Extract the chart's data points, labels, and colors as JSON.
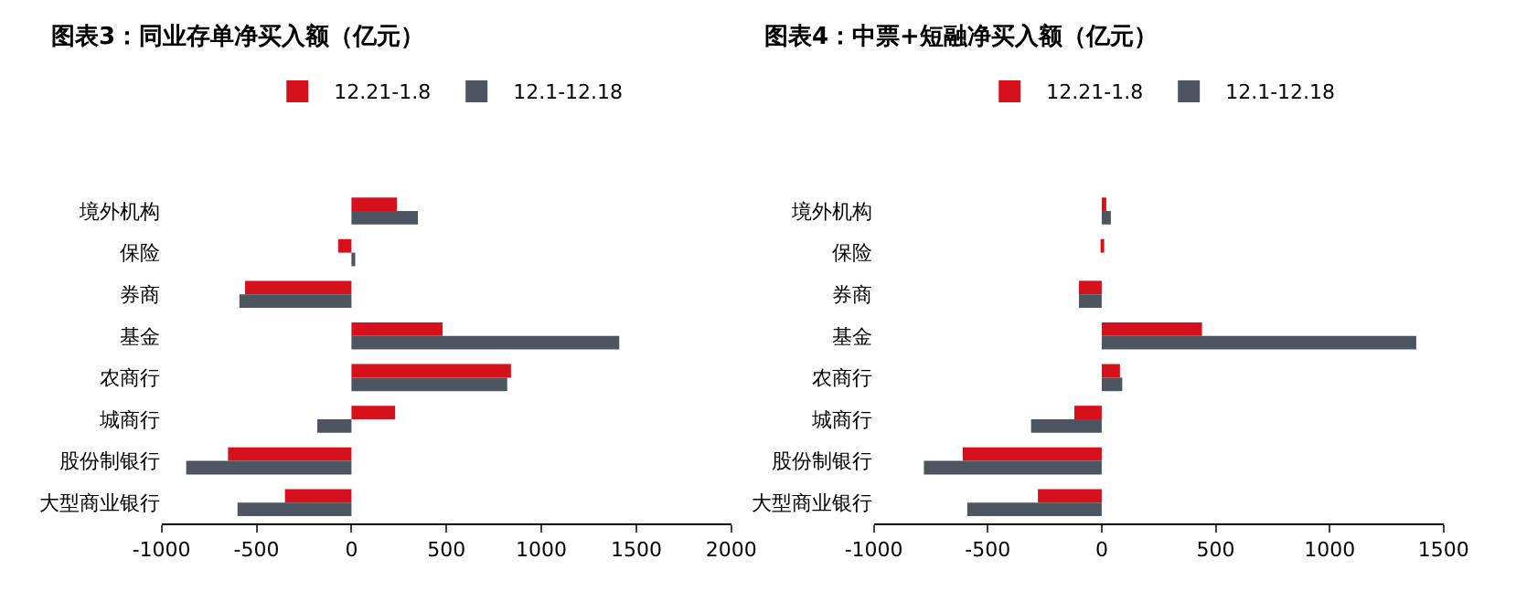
{
  "chart_data": [
    {
      "type": "bar",
      "orientation": "horizontal",
      "title": "图表3：同业存单净买入额（亿元）",
      "categories": [
        "境外机构",
        "保险",
        "券商",
        "基金",
        "农商行",
        "城商行",
        "股份制银行",
        "大型商业银行"
      ],
      "series": [
        {
          "name": "12.21-1.8",
          "color": "#d7111b",
          "values": [
            240,
            -70,
            -560,
            480,
            840,
            230,
            -650,
            -350
          ]
        },
        {
          "name": "12.1-12.18",
          "color": "#4d5560",
          "values": [
            350,
            20,
            -590,
            1410,
            820,
            -180,
            -870,
            -600
          ]
        }
      ],
      "xlim": [
        -1000,
        2000
      ],
      "xticks": [
        -1000,
        -500,
        0,
        500,
        1000,
        1500,
        2000
      ],
      "legend": "top"
    },
    {
      "type": "bar",
      "orientation": "horizontal",
      "title": "图表4：中票+短融净买入额（亿元）",
      "categories": [
        "境外机构",
        "保险",
        "券商",
        "基金",
        "农商行",
        "城商行",
        "股份制银行",
        "大型商业银行"
      ],
      "series": [
        {
          "name": "12.21-1.8",
          "color": "#d7111b",
          "values": [
            20,
            10,
            -100,
            440,
            80,
            -120,
            -610,
            -280
          ]
        },
        {
          "name": "12.1-12.18",
          "color": "#4d5560",
          "values": [
            40,
            0,
            -100,
            1380,
            90,
            -310,
            -780,
            -590
          ]
        }
      ],
      "xlim": [
        -1000,
        1500
      ],
      "xticks": [
        -1000,
        -500,
        0,
        500,
        1000,
        1500
      ],
      "legend": "top"
    }
  ]
}
